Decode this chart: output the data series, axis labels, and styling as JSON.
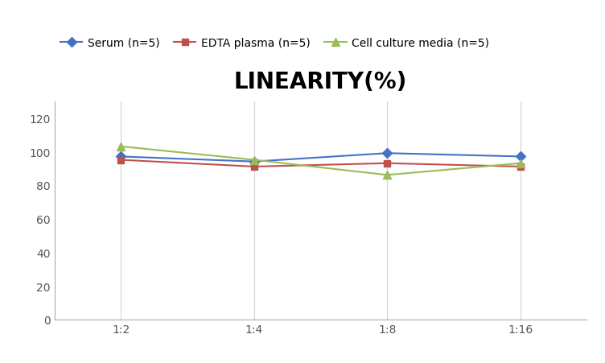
{
  "title": "LINEARITY(%)",
  "x_labels": [
    "1:2",
    "1:4",
    "1:8",
    "1:16"
  ],
  "x_positions": [
    0,
    1,
    2,
    3
  ],
  "series": [
    {
      "label": "Serum (n=5)",
      "values": [
        97,
        94,
        99,
        97
      ],
      "color": "#4472C4",
      "marker": "D",
      "markersize": 6
    },
    {
      "label": "EDTA plasma (n=5)",
      "values": [
        95,
        91,
        93,
        91
      ],
      "color": "#C0504D",
      "marker": "s",
      "markersize": 6
    },
    {
      "label": "Cell culture media (n=5)",
      "values": [
        103,
        95,
        86,
        93
      ],
      "color": "#9BBB59",
      "marker": "^",
      "markersize": 7
    }
  ],
  "ylim": [
    0,
    130
  ],
  "yticks": [
    0,
    20,
    40,
    60,
    80,
    100,
    120
  ],
  "grid_color": "#D3D3D3",
  "background_color": "#FFFFFF",
  "title_fontsize": 20,
  "legend_fontsize": 10,
  "tick_fontsize": 10,
  "spine_color": "#AAAAAA"
}
